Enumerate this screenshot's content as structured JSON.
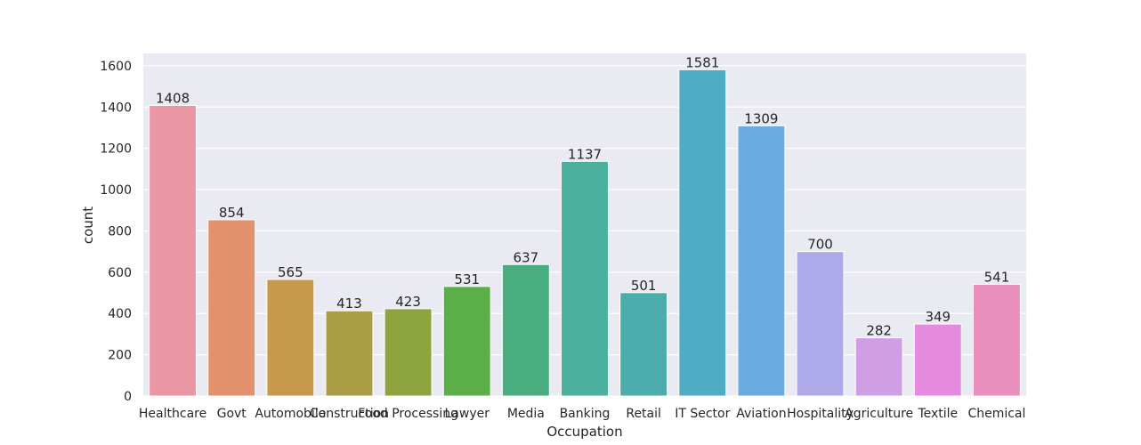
{
  "chart_data": {
    "type": "bar",
    "title": "",
    "xlabel": "Occupation",
    "ylabel": "count",
    "ylim": [
      0,
      1660
    ],
    "yticks": [
      0,
      200,
      400,
      600,
      800,
      1000,
      1200,
      1400,
      1600
    ],
    "grid": true,
    "background": "#eaeaf2",
    "categories": [
      "Healthcare",
      "Govt",
      "Automobile",
      "Construction",
      "Food Processing",
      "Lawyer",
      "Media",
      "Banking",
      "Retail",
      "IT Sector",
      "Aviation",
      "Hospitality",
      "Agriculture",
      "Textile",
      "Chemical"
    ],
    "values": [
      1408,
      854,
      565,
      413,
      423,
      531,
      637,
      1137,
      501,
      1581,
      1309,
      700,
      282,
      349,
      541
    ],
    "colors": [
      "#ea96a3",
      "#e3916c",
      "#c69a4a",
      "#aa9d45",
      "#8da43f",
      "#5cae48",
      "#49ad80",
      "#4aaf9d",
      "#4bacab",
      "#50abc5",
      "#6aacdf",
      "#aeaaea",
      "#d09ee5",
      "#e58ade",
      "#e98fbe"
    ]
  }
}
